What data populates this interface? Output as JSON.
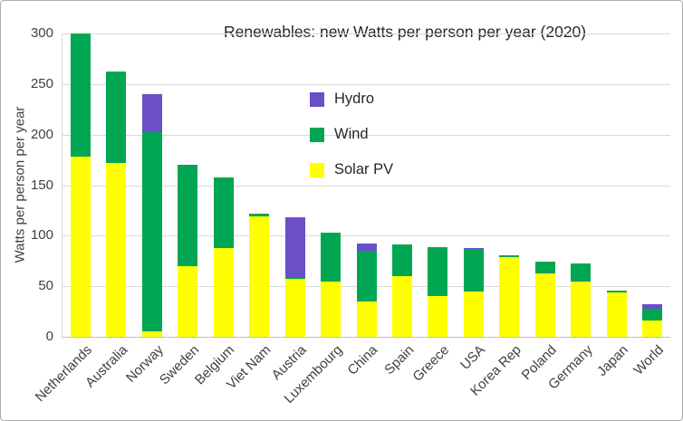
{
  "chart_data": {
    "type": "bar",
    "stacked": true,
    "title": "Renewables: new Watts per person per year (2020)",
    "ylabel": "Watts per person per year",
    "ylim": [
      0,
      300
    ],
    "yticks": [
      0,
      50,
      100,
      150,
      200,
      250,
      300
    ],
    "grid": true,
    "legend_position": "inside-top-center",
    "categories": [
      "Netherlands",
      "Australia",
      "Norway",
      "Sweden",
      "Belgium",
      "Viet Nam",
      "Austria",
      "Luxembourg",
      "China",
      "Spain",
      "Greece",
      "USA",
      "Korea Rep",
      "Poland",
      "Germany",
      "Japan",
      "World"
    ],
    "series": [
      {
        "name": "Solar PV",
        "color": "#FFFF00",
        "values": [
          178,
          172,
          5,
          70,
          88,
          119,
          57,
          55,
          35,
          60,
          40,
          45,
          79,
          63,
          55,
          44,
          16
        ]
      },
      {
        "name": "Wind",
        "color": "#00A651",
        "values": [
          122,
          90,
          197,
          100,
          70,
          3,
          2,
          48,
          50,
          31,
          49,
          42,
          2,
          11,
          18,
          2,
          12
        ]
      },
      {
        "name": "Hydro",
        "color": "#6A4FC9",
        "values": [
          0,
          0,
          38,
          0,
          0,
          0,
          59,
          0,
          7,
          0,
          0,
          1,
          0,
          0,
          0,
          0,
          4
        ]
      }
    ],
    "legend_order": [
      "Hydro",
      "Wind",
      "Solar PV"
    ],
    "colors": {
      "grid": "#D9D9D9",
      "axis": "#BFBFBF",
      "text": "#404040",
      "background": "#FFFFFF",
      "border": "#ACACAC"
    }
  }
}
